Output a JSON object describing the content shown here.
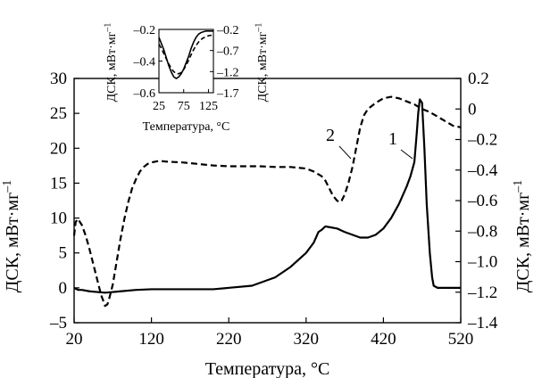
{
  "chart_data": [
    {
      "type": "line",
      "role": "main",
      "xlabel": "Температура, °С",
      "ylabel_left": "ДСК, мВт·мг",
      "ylabel_left_sup": "–1",
      "ylabel_right": "ДСК, мВт·мг",
      "ylabel_right_sup": "–1",
      "xlim": [
        20,
        520
      ],
      "ylim_left": [
        -5,
        30
      ],
      "ylim_right": [
        -1.4,
        0.2
      ],
      "x_ticks": [
        {
          "value": 20,
          "label": "20"
        },
        {
          "value": 120,
          "label": "120"
        },
        {
          "value": 220,
          "label": "220"
        },
        {
          "value": 320,
          "label": "320"
        },
        {
          "value": 420,
          "label": "420"
        },
        {
          "value": 520,
          "label": "520"
        }
      ],
      "y_left_ticks": [
        {
          "value": -5,
          "label": "–5"
        },
        {
          "value": 0,
          "label": "0"
        },
        {
          "value": 5,
          "label": "5"
        },
        {
          "value": 10,
          "label": "10"
        },
        {
          "value": 15,
          "label": "15"
        },
        {
          "value": 20,
          "label": "20"
        },
        {
          "value": 25,
          "label": "25"
        },
        {
          "value": 30,
          "label": "30"
        }
      ],
      "y_right_ticks": [
        {
          "value": 0.2,
          "label": "0.2"
        },
        {
          "value": 0.0,
          "label": "0"
        },
        {
          "value": -0.2,
          "label": "–0.2"
        },
        {
          "value": -0.4,
          "label": "–0.4"
        },
        {
          "value": -0.6,
          "label": "–0.6"
        },
        {
          "value": -0.8,
          "label": "–0.8"
        },
        {
          "value": -1.0,
          "label": "–1.0"
        },
        {
          "value": -1.2,
          "label": "–1.2"
        },
        {
          "value": -1.4,
          "label": "–1.4"
        }
      ],
      "grid": false,
      "series": [
        {
          "name": "1",
          "axis": "left",
          "style": "solid",
          "x": [
            20,
            25,
            30,
            40,
            50,
            60,
            70,
            80,
            100,
            120,
            150,
            200,
            250,
            280,
            300,
            320,
            330,
            336,
            340,
            345,
            350,
            360,
            370,
            380,
            390,
            400,
            410,
            420,
            430,
            440,
            450,
            455,
            460,
            463,
            465,
            467,
            470,
            473,
            476,
            480,
            483,
            485,
            490,
            500,
            520
          ],
          "y": [
            0.0,
            -0.3,
            -0.3,
            -0.5,
            -0.6,
            -0.7,
            -0.6,
            -0.5,
            -0.3,
            -0.2,
            -0.2,
            -0.2,
            0.3,
            1.5,
            3.0,
            5.0,
            6.5,
            8.0,
            8.3,
            8.8,
            8.7,
            8.5,
            8.0,
            7.6,
            7.2,
            7.2,
            7.6,
            8.5,
            10.0,
            12.0,
            14.5,
            16.0,
            18.0,
            22.0,
            25.0,
            27.0,
            26.5,
            20.0,
            12.0,
            5.0,
            1.5,
            0.3,
            0.0,
            0.0,
            0.0
          ]
        },
        {
          "name": "2",
          "axis": "right",
          "style": "dashed",
          "x": [
            20,
            22,
            25,
            30,
            35,
            40,
            45,
            50,
            55,
            58,
            60,
            63,
            65,
            70,
            75,
            80,
            85,
            90,
            95,
            100,
            105,
            110,
            115,
            120,
            130,
            140,
            160,
            180,
            200,
            220,
            240,
            260,
            280,
            300,
            320,
            330,
            340,
            345,
            350,
            355,
            360,
            363,
            366,
            370,
            375,
            380,
            385,
            390,
            395,
            400,
            410,
            420,
            430,
            440,
            450,
            460,
            470,
            480,
            490,
            500,
            510,
            520
          ],
          "y": [
            -0.83,
            -0.74,
            -0.72,
            -0.76,
            -0.83,
            -0.92,
            -1.02,
            -1.12,
            -1.22,
            -1.26,
            -1.29,
            -1.28,
            -1.25,
            -1.15,
            -1.0,
            -0.85,
            -0.72,
            -0.61,
            -0.52,
            -0.46,
            -0.41,
            -0.38,
            -0.36,
            -0.35,
            -0.34,
            -0.345,
            -0.35,
            -0.36,
            -0.37,
            -0.375,
            -0.375,
            -0.375,
            -0.38,
            -0.38,
            -0.39,
            -0.41,
            -0.44,
            -0.47,
            -0.52,
            -0.57,
            -0.6,
            -0.61,
            -0.6,
            -0.56,
            -0.48,
            -0.38,
            -0.25,
            -0.12,
            -0.04,
            0.0,
            0.04,
            0.07,
            0.08,
            0.07,
            0.05,
            0.03,
            0.0,
            -0.02,
            -0.05,
            -0.08,
            -0.11,
            -0.12
          ]
        }
      ],
      "curve_labels": [
        {
          "text": "1",
          "series": "1"
        },
        {
          "text": "2",
          "series": "2"
        }
      ]
    },
    {
      "type": "line",
      "role": "inset",
      "xlabel": "Температура, °С",
      "ylabel_left": "ДСК, мВт·мг",
      "ylabel_left_sup": "–1",
      "ylabel_right": "ДСК, мВт·мг",
      "ylabel_right_sup": "–1",
      "xlim": [
        25,
        135
      ],
      "ylim_left": [
        -0.6,
        -0.2
      ],
      "ylim_right": [
        -1.7,
        -0.2
      ],
      "x_ticks": [
        {
          "value": 25,
          "label": "25"
        },
        {
          "value": 75,
          "label": "75"
        },
        {
          "value": 125,
          "label": "125"
        }
      ],
      "y_left_ticks": [
        {
          "value": -0.2,
          "label": "–0.2"
        },
        {
          "value": -0.4,
          "label": "–0.4"
        },
        {
          "value": -0.6,
          "label": "–0.6"
        }
      ],
      "y_right_ticks": [
        {
          "value": -0.2,
          "label": "–0.2"
        },
        {
          "value": -0.7,
          "label": "–0.7"
        },
        {
          "value": -1.2,
          "label": "–1.2"
        },
        {
          "value": -1.7,
          "label": "–1.7"
        }
      ],
      "grid": false,
      "series": [
        {
          "name": "1",
          "axis": "left",
          "style": "solid",
          "x": [
            25,
            30,
            35,
            40,
            45,
            50,
            55,
            60,
            65,
            70,
            75,
            80,
            85,
            90,
            95,
            100,
            105,
            110,
            115,
            120,
            125,
            130,
            135
          ],
          "y": [
            -0.25,
            -0.29,
            -0.33,
            -0.38,
            -0.43,
            -0.47,
            -0.5,
            -0.51,
            -0.5,
            -0.48,
            -0.45,
            -0.41,
            -0.37,
            -0.32,
            -0.28,
            -0.25,
            -0.23,
            -0.22,
            -0.215,
            -0.21,
            -0.21,
            -0.21,
            -0.21
          ]
        },
        {
          "name": "2",
          "axis": "right",
          "style": "dashed",
          "x": [
            25,
            30,
            35,
            40,
            45,
            50,
            55,
            60,
            65,
            70,
            75,
            80,
            85,
            90,
            95,
            100,
            105,
            110,
            115,
            120,
            125,
            130,
            135
          ],
          "y": [
            -0.55,
            -0.65,
            -0.78,
            -0.9,
            -1.02,
            -1.13,
            -1.2,
            -1.25,
            -1.25,
            -1.22,
            -1.15,
            -1.05,
            -0.93,
            -0.8,
            -0.68,
            -0.58,
            -0.5,
            -0.44,
            -0.4,
            -0.37,
            -0.35,
            -0.34,
            -0.33
          ]
        }
      ]
    }
  ]
}
